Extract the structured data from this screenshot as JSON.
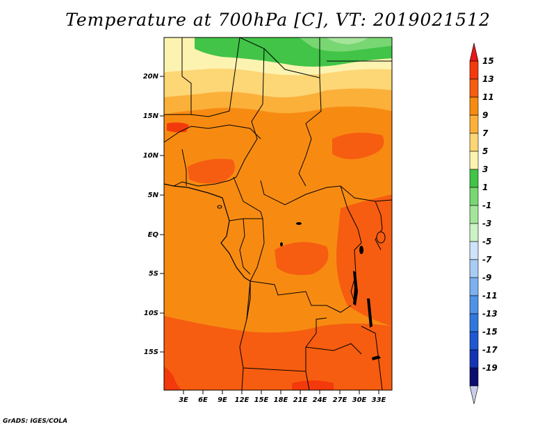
{
  "title": "Temperature at 700hPa [C], VT: 2019021512",
  "credit": "GrADS: IGES/COLA",
  "map": {
    "lon_labels": [
      "3E",
      "6E",
      "9E",
      "12E",
      "15E",
      "18E",
      "21E",
      "24E",
      "27E",
      "30E",
      "33E"
    ],
    "lat_labels": [
      "20N",
      "15N",
      "10N",
      "5N",
      "EQ",
      "5S",
      "10S",
      "15S"
    ]
  },
  "colorbar": {
    "labels": [
      "15",
      "13",
      "11",
      "9",
      "7",
      "5",
      "3",
      "1",
      "-1",
      "-3",
      "-5",
      "-7",
      "-9",
      "-11",
      "-13",
      "-15",
      "-17",
      "-19"
    ],
    "colors": [
      "#e8161a",
      "#f33a0c",
      "#f65d10",
      "#f78b12",
      "#fbb03a",
      "#fdd676",
      "#fdf3b0",
      "#41c447",
      "#78d773",
      "#a5e59b",
      "#ccf3c6",
      "#cfe4fa",
      "#a7cdf6",
      "#7bb1ef",
      "#4f93e8",
      "#2f77df",
      "#1f58d1",
      "#1434b3",
      "#0b0e6e",
      "#c9cfe9"
    ]
  }
}
